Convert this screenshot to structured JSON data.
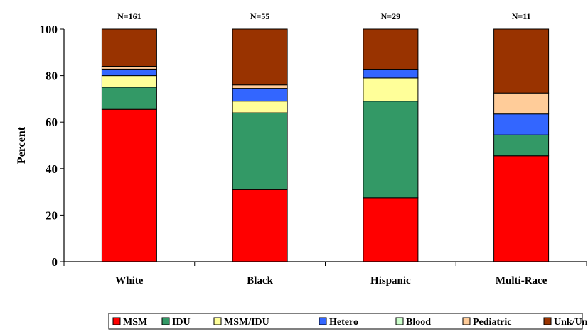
{
  "chart_data": {
    "type": "bar",
    "stacked": true,
    "categories": [
      "White",
      "Black",
      "Hispanic",
      "Multi-Race"
    ],
    "annotations": [
      "N=161",
      "N=55",
      "N=29",
      "N=11"
    ],
    "ylabel": "Percent",
    "ylim": [
      0,
      100
    ],
    "yticks": [
      "0",
      "20",
      "40",
      "60",
      "80",
      "100"
    ],
    "grid": false,
    "legend": "bottom",
    "series": [
      {
        "name": "MSM",
        "color": "#ff0000",
        "values": [
          65.5,
          31,
          27.5,
          45.5
        ]
      },
      {
        "name": "IDU",
        "color": "#339966",
        "values": [
          9.5,
          33,
          41.5,
          9
        ]
      },
      {
        "name": "MSM/IDU",
        "color": "#ffff99",
        "values": [
          5,
          5,
          10,
          0
        ]
      },
      {
        "name": "Hetero",
        "color": "#3366ff",
        "values": [
          2.5,
          5.5,
          3.5,
          9
        ]
      },
      {
        "name": "Blood",
        "color": "#ccffcc",
        "values": [
          0.3,
          0,
          0,
          0
        ]
      },
      {
        "name": "Pediatric",
        "color": "#ffcc99",
        "values": [
          1.2,
          1.5,
          0,
          9
        ]
      },
      {
        "name": "Unk/Under Investigation",
        "color": "#993300",
        "values": [
          16,
          24,
          17.5,
          27.5
        ]
      }
    ]
  }
}
